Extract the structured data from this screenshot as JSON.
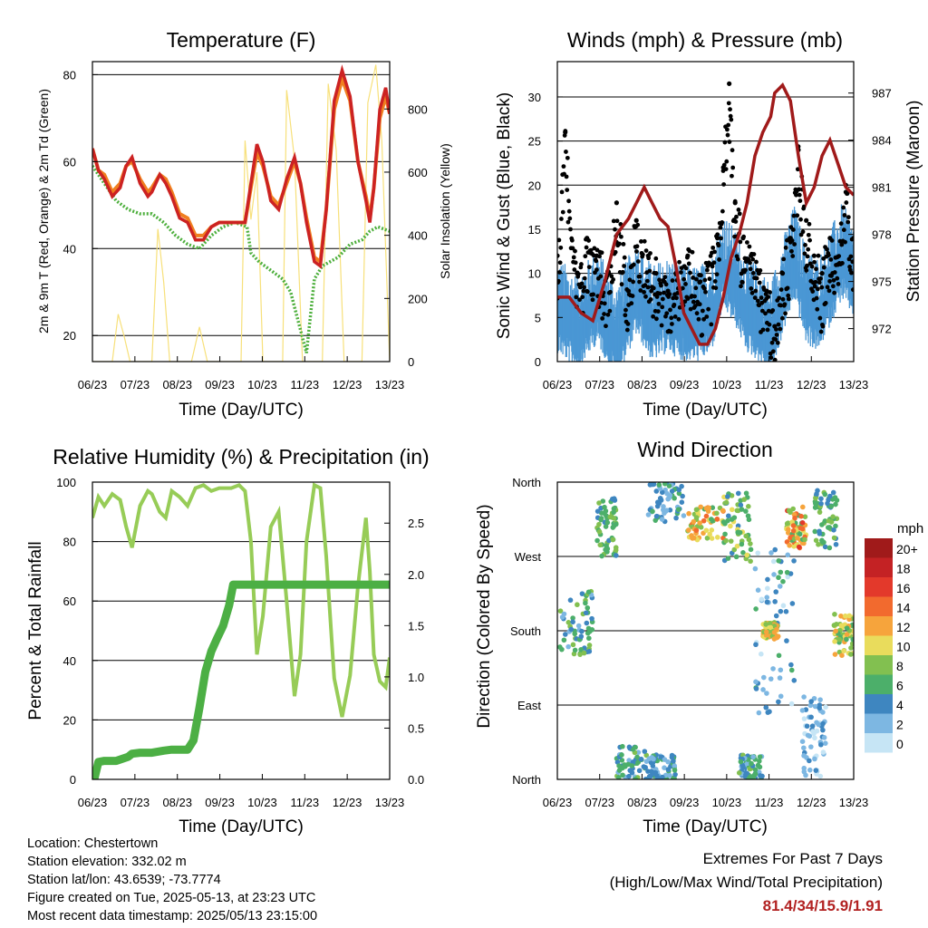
{
  "figure": {
    "footer": {
      "location": "Location: Chestertown",
      "elevation": "Station elevation: 332.02 m",
      "latlon": "Station lat/lon: 43.6539; -73.7774",
      "created": "Figure created on Tue, 2025-05-13, at 23:23 UTC",
      "timestamp": "Most recent data timestamp: 2025/05/13 23:15:00"
    },
    "extremes": {
      "title": "Extremes For Past 7 Days",
      "subtitle": "(High/Low/Max Wind/Total Precipitation)",
      "values": "81.4/34/15.9/1.91"
    },
    "colors": {
      "temp_red": "#cc2222",
      "temp_orange": "#f07f20",
      "dewpoint_green": "#4daf3c",
      "insolation_yellow": "#f7e07a",
      "wind_blue": "#4a97d4",
      "gust_black": "#000000",
      "pressure_maroon": "#a01a1a",
      "rh_lightgreen": "#97cc57",
      "precip_green": "#4caf44"
    }
  },
  "chart_data": [
    {
      "type": "line",
      "title": "Temperature (F)",
      "xlabel": "Time (Day/UTC)",
      "ylabel": "2m & 9m T (Red, Orange) & 2m Td (Green)",
      "ylabel_right": "Solar Insolation (Yellow)",
      "x_ticks": [
        "06/23",
        "07/23",
        "08/23",
        "09/23",
        "10/23",
        "11/23",
        "12/23",
        "13/23"
      ],
      "y_ticks": [
        20,
        40,
        60,
        80
      ],
      "y_ticks_right": [
        0,
        200,
        400,
        600,
        800
      ],
      "ylim": [
        14,
        83
      ],
      "ylim_right": [
        0,
        950
      ],
      "grid": "horizontal",
      "series": [
        {
          "name": "2m T",
          "color": "#cc2222",
          "axis": "left",
          "x": [
            0,
            0.15,
            0.3,
            0.5,
            0.7,
            0.85,
            1.0,
            1.2,
            1.4,
            1.5,
            1.7,
            1.85,
            2.0,
            2.2,
            2.4,
            2.6,
            2.8,
            3.0,
            3.2,
            3.5,
            3.7,
            3.85,
            4.0,
            4.15,
            4.3,
            4.5,
            4.7,
            4.9,
            5.1,
            5.25,
            5.4,
            5.6,
            5.75,
            5.9,
            6.1,
            6.3,
            6.5,
            6.7,
            6.9,
            7.0,
            7.1,
            7.25,
            7.4,
            7.5
          ],
          "y": [
            63,
            58,
            56,
            52,
            54,
            59,
            61,
            55,
            52,
            53,
            57,
            55,
            52,
            47,
            46,
            42,
            42,
            45,
            46,
            46,
            46,
            46,
            55,
            64,
            60,
            51,
            49,
            56,
            61,
            55,
            46,
            37,
            36,
            49,
            74,
            81,
            75,
            60,
            51,
            46,
            54,
            72,
            77,
            71
          ]
        },
        {
          "name": "9m T",
          "color": "#f07f20",
          "axis": "left",
          "x": [
            0,
            0.15,
            0.3,
            0.5,
            0.7,
            0.85,
            1.0,
            1.2,
            1.4,
            1.5,
            1.7,
            1.85,
            2.0,
            2.2,
            2.4,
            2.6,
            2.8,
            3.0,
            3.2,
            3.5,
            3.7,
            3.85,
            4.0,
            4.15,
            4.3,
            4.5,
            4.7,
            4.9,
            5.1,
            5.25,
            5.4,
            5.6,
            5.75,
            5.9,
            6.1,
            6.3,
            6.5,
            6.7,
            6.9,
            7.0,
            7.1,
            7.25,
            7.4,
            7.5
          ],
          "y": [
            63,
            58,
            57,
            53,
            55,
            59,
            60,
            56,
            53,
            54,
            57,
            56,
            53,
            48,
            47,
            43,
            43,
            45,
            46,
            46,
            46,
            46,
            54,
            62,
            59,
            52,
            50,
            55,
            60,
            55,
            47,
            38,
            37,
            49,
            72,
            79,
            74,
            60,
            52,
            47,
            54,
            70,
            75,
            71
          ]
        },
        {
          "name": "2m Td",
          "color": "#4daf3c",
          "axis": "left",
          "x": [
            0,
            0.3,
            0.6,
            0.9,
            1.2,
            1.5,
            1.8,
            2.1,
            2.4,
            2.7,
            3.0,
            3.3,
            3.6,
            3.9,
            4.0,
            4.2,
            4.5,
            4.8,
            5.0,
            5.2,
            5.4,
            5.6,
            5.8,
            6.0,
            6.2,
            6.5,
            6.8,
            7.0,
            7.2,
            7.5
          ],
          "y": [
            59,
            55,
            51,
            49,
            48,
            48,
            46,
            43,
            41,
            40,
            43,
            45,
            46,
            45,
            39,
            37,
            35,
            33,
            30,
            23,
            16,
            33,
            36,
            37,
            38,
            41,
            42,
            44,
            45,
            44
          ]
        },
        {
          "name": "Solar Insolation",
          "color": "#f7e07a",
          "axis": "right",
          "x": [
            0,
            0.5,
            0.65,
            0.8,
            0.95,
            1.1,
            1.3,
            1.5,
            1.65,
            1.8,
            1.95,
            2.1,
            2.3,
            2.5,
            2.7,
            2.9,
            3.1,
            3.3,
            3.5,
            3.75,
            3.85,
            4.0,
            4.15,
            4.3,
            4.5,
            4.8,
            4.9,
            5.1,
            5.3,
            5.5,
            5.8,
            5.95,
            6.15,
            6.35,
            6.55,
            6.8,
            6.95,
            7.15,
            7.3,
            7.5
          ],
          "y": [
            0,
            0,
            150,
            80,
            0,
            0,
            0,
            0,
            420,
            250,
            0,
            0,
            0,
            0,
            110,
            0,
            0,
            0,
            0,
            0,
            700,
            450,
            600,
            0,
            0,
            0,
            860,
            640,
            0,
            0,
            0,
            880,
            670,
            0,
            0,
            0,
            820,
            940,
            700,
            0
          ]
        }
      ]
    },
    {
      "type": "scatter",
      "title": "Winds (mph) & Pressure (mb)",
      "xlabel": "Time (Day/UTC)",
      "ylabel": "Sonic Wind & Gust (Blue, Black)",
      "ylabel_right": "Station Pressure (Maroon)",
      "x_ticks": [
        "06/23",
        "07/23",
        "08/23",
        "09/23",
        "10/23",
        "11/23",
        "12/23",
        "13/23"
      ],
      "y_ticks": [
        0,
        5,
        10,
        15,
        20,
        25,
        30
      ],
      "y_ticks_right": [
        972,
        975,
        978,
        981,
        984,
        987
      ],
      "ylim": [
        0,
        34
      ],
      "ylim_right": [
        969.9,
        989
      ],
      "grid": "horizontal",
      "series": [
        {
          "name": "Sonic Wind",
          "color": "#4a97d4",
          "axis": "left",
          "x": [
            0,
            0.5,
            1.0,
            1.5,
            2.0,
            2.4,
            2.8,
            3.2,
            3.6,
            3.9,
            4.2,
            4.5,
            4.8,
            5.1,
            5.4,
            5.7,
            6.0,
            6.3,
            6.6,
            6.9,
            7.2,
            7.5
          ],
          "y": [
            6,
            4,
            7,
            3,
            8,
            5,
            6,
            5,
            5,
            6,
            11,
            9,
            6,
            5,
            3,
            8,
            12,
            7,
            6,
            9,
            12,
            10
          ]
        },
        {
          "name": "Gust",
          "color": "#000000",
          "axis": "left",
          "x": [
            0,
            0.2,
            0.5,
            0.75,
            1.0,
            1.3,
            1.5,
            1.8,
            2.0,
            2.3,
            2.5,
            2.8,
            3.0,
            3.3,
            3.6,
            3.9,
            4.05,
            4.2,
            4.35,
            4.5,
            4.7,
            4.9,
            5.1,
            5.3,
            5.5,
            5.7,
            5.9,
            6.1,
            6.3,
            6.5,
            6.7,
            6.9,
            7.1,
            7.3,
            7.5
          ],
          "y": [
            12,
            26,
            10,
            14,
            12,
            10,
            18,
            8,
            16,
            12,
            10,
            8,
            10,
            12,
            9,
            11,
            14,
            22,
            31.5,
            18,
            14,
            12,
            10,
            8,
            4,
            10,
            14,
            24,
            16,
            12,
            10,
            14,
            11,
            20,
            14
          ]
        },
        {
          "name": "Station Pressure",
          "color": "#a01a1a",
          "axis": "right",
          "x": [
            0,
            0.3,
            0.6,
            0.9,
            1.2,
            1.5,
            1.8,
            2.0,
            2.2,
            2.4,
            2.6,
            2.8,
            3.0,
            3.2,
            3.4,
            3.6,
            3.8,
            4.0,
            4.2,
            4.4,
            4.6,
            4.8,
            5.0,
            5.2,
            5.4,
            5.5,
            5.7,
            5.9,
            6.1,
            6.3,
            6.5,
            6.7,
            6.9,
            7.1,
            7.3,
            7.5
          ],
          "y": [
            974,
            974,
            973,
            972.5,
            975,
            978,
            979,
            980,
            981,
            980,
            979,
            978.5,
            976,
            973,
            972,
            971,
            971,
            972,
            974,
            976.5,
            978,
            980,
            983,
            984.5,
            985.5,
            987,
            987.5,
            986.5,
            983,
            980,
            981,
            983,
            984,
            982.5,
            981,
            980.5
          ]
        }
      ]
    },
    {
      "type": "line",
      "title": "Relative Humidity (%) & Precipitation (in)",
      "xlabel": "Time (Day/UTC)",
      "ylabel": "Percent & Total Rainfall",
      "x_ticks": [
        "06/23",
        "07/23",
        "08/23",
        "09/23",
        "10/23",
        "11/23",
        "12/23",
        "13/23"
      ],
      "y_ticks": [
        0,
        20,
        40,
        60,
        80,
        100
      ],
      "y_ticks_right": [
        0.0,
        0.5,
        1.0,
        1.5,
        2.0,
        2.5
      ],
      "ylim": [
        0,
        100
      ],
      "ylim_right": [
        0,
        2.9
      ],
      "grid": "horizontal",
      "series": [
        {
          "name": "Relative Humidity",
          "color": "#97cc57",
          "axis": "left",
          "x": [
            0,
            0.15,
            0.3,
            0.5,
            0.7,
            0.85,
            1.0,
            1.2,
            1.4,
            1.5,
            1.7,
            1.85,
            2.0,
            2.2,
            2.4,
            2.6,
            2.8,
            3.0,
            3.2,
            3.5,
            3.7,
            3.85,
            4.0,
            4.15,
            4.3,
            4.5,
            4.7,
            4.9,
            5.1,
            5.25,
            5.4,
            5.6,
            5.75,
            5.9,
            6.1,
            6.3,
            6.5,
            6.7,
            6.9,
            7.0,
            7.1,
            7.25,
            7.4,
            7.5
          ],
          "y": [
            88,
            95,
            92,
            96,
            94,
            85,
            78,
            92,
            97,
            96,
            90,
            88,
            97,
            95,
            92,
            98,
            99,
            97,
            98,
            98,
            99,
            97,
            80,
            42,
            55,
            85,
            90,
            60,
            28,
            42,
            80,
            99,
            98,
            75,
            34,
            21,
            35,
            65,
            88,
            70,
            42,
            33,
            31,
            41
          ]
        },
        {
          "name": "Total Precipitation",
          "color": "#4caf44",
          "axis": "right",
          "x": [
            0,
            0.05,
            0.15,
            0.3,
            0.6,
            0.9,
            1.0,
            1.2,
            1.5,
            1.8,
            2.0,
            2.2,
            2.4,
            2.55,
            2.7,
            2.85,
            3.0,
            3.15,
            3.3,
            3.45,
            3.55,
            3.7,
            4.0,
            7.5
          ],
          "y": [
            0,
            0.01,
            0.17,
            0.18,
            0.18,
            0.22,
            0.25,
            0.26,
            0.26,
            0.28,
            0.29,
            0.29,
            0.29,
            0.38,
            0.7,
            1.05,
            1.25,
            1.38,
            1.5,
            1.7,
            1.9,
            1.9,
            1.9,
            1.9
          ]
        }
      ]
    },
    {
      "type": "scatter",
      "title": "Wind Direction",
      "xlabel": "Time (Day/UTC)",
      "ylabel": "Direction (Colored By Speed)",
      "x_ticks": [
        "06/23",
        "07/23",
        "08/23",
        "09/23",
        "10/23",
        "11/23",
        "12/23",
        "13/23"
      ],
      "y_ticks": [
        "North",
        "East",
        "South",
        "West",
        "North"
      ],
      "ylim": [
        0,
        360
      ],
      "legend_title": "mph",
      "legend_labels": [
        "20+",
        "18",
        "16",
        "14",
        "12",
        "10",
        "8",
        "6",
        "4",
        "2",
        "0"
      ],
      "legend_colors": [
        "#a01a1a",
        "#c42224",
        "#e3392b",
        "#f26a2e",
        "#f6a43c",
        "#e9dc5c",
        "#82c050",
        "#4caf6a",
        "#3e86c0",
        "#7db7e2",
        "#c6e5f5"
      ],
      "legend_placement": "right",
      "clusters": [
        {
          "x": [
            0,
            0.9
          ],
          "dir": [
            150,
            230
          ],
          "speed": [
            2,
            8
          ]
        },
        {
          "x": [
            1.0,
            1.5
          ],
          "dir": [
            270,
            340
          ],
          "speed": [
            4,
            8
          ]
        },
        {
          "x": [
            1.5,
            2.3
          ],
          "dir": [
            0,
            40
          ],
          "speed": [
            2,
            8
          ]
        },
        {
          "x": [
            2.3,
            3.0
          ],
          "dir": [
            0,
            30
          ],
          "speed": [
            2,
            6
          ]
        },
        {
          "x": [
            2.3,
            3.2
          ],
          "dir": [
            310,
            360
          ],
          "speed": [
            2,
            6
          ]
        },
        {
          "x": [
            3.3,
            4.2
          ],
          "dir": [
            290,
            330
          ],
          "speed": [
            6,
            14
          ]
        },
        {
          "x": [
            4.2,
            4.9
          ],
          "dir": [
            260,
            350
          ],
          "speed": [
            4,
            10
          ]
        },
        {
          "x": [
            4.6,
            5.2
          ],
          "dir": [
            0,
            30
          ],
          "speed": [
            2,
            8
          ]
        },
        {
          "x": [
            5.0,
            6.0
          ],
          "dir": [
            80,
            280
          ],
          "speed": [
            0,
            6
          ]
        },
        {
          "x": [
            5.2,
            5.6
          ],
          "dir": [
            170,
            190
          ],
          "speed": [
            8,
            13
          ]
        },
        {
          "x": [
            5.8,
            6.3
          ],
          "dir": [
            280,
            330
          ],
          "speed": [
            6,
            16
          ]
        },
        {
          "x": [
            6.2,
            6.8
          ],
          "dir": [
            0,
            100
          ],
          "speed": [
            0,
            4
          ]
        },
        {
          "x": [
            6.5,
            7.1
          ],
          "dir": [
            280,
            350
          ],
          "speed": [
            4,
            8
          ]
        },
        {
          "x": [
            7.0,
            7.5
          ],
          "dir": [
            150,
            200
          ],
          "speed": [
            6,
            12
          ]
        }
      ]
    }
  ]
}
